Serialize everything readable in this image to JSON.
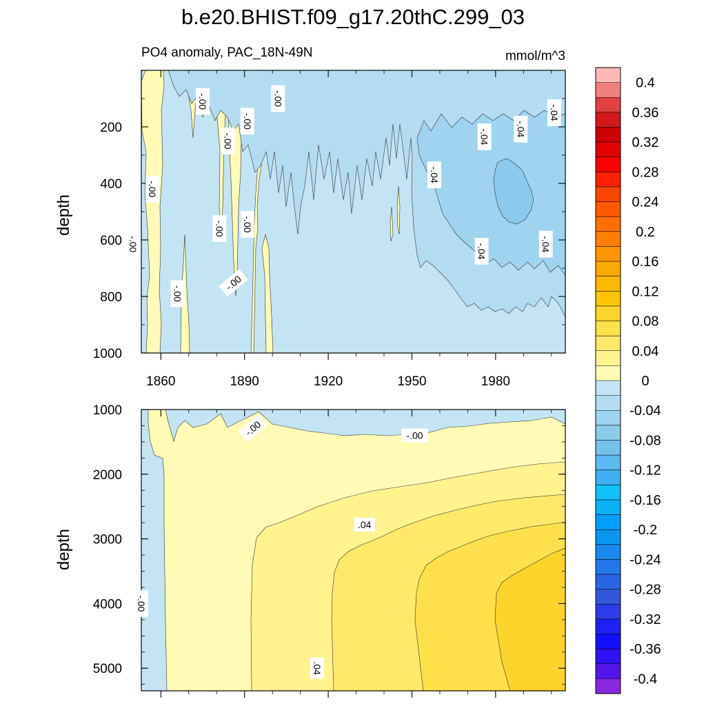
{
  "chart_data": {
    "type": "heatmap",
    "title": "b.e20.BHIST.f09_g17.20thC.299_03",
    "subtitle": "PO4 anomaly, PAC_18N-49N",
    "units": "mmol/m^3",
    "xlabel": "",
    "x_ticks": [
      1860,
      1890,
      1920,
      1950,
      1980
    ],
    "x_range": [
      1853,
      2005
    ],
    "panels": [
      {
        "name": "upper",
        "ylabel": "depth",
        "y_range": [
          0,
          1000
        ],
        "y_ticks": [
          200,
          400,
          600,
          800,
          1000
        ],
        "contour_labels": [
          {
            "text": "-.00",
            "x": 1875,
            "y": 110,
            "angle": 90
          },
          {
            "text": "-.00",
            "x": 1902,
            "y": 100,
            "angle": 90
          },
          {
            "text": "-.00",
            "x": 1891,
            "y": 180,
            "angle": 90
          },
          {
            "text": "-.00",
            "x": 1884,
            "y": 250,
            "angle": 90
          },
          {
            "text": "-.00",
            "x": 1857,
            "y": 420,
            "angle": 90
          },
          {
            "text": "-.00",
            "x": 1881,
            "y": 560,
            "angle": 90
          },
          {
            "text": "-.00",
            "x": 1891,
            "y": 545,
            "angle": 90
          },
          {
            "text": "-.00",
            "x": 1850,
            "y": 615,
            "angle": 90
          },
          {
            "text": "-.00",
            "x": 1866,
            "y": 790,
            "angle": 90
          },
          {
            "text": "-.00",
            "x": 1886,
            "y": 752,
            "angle": -40
          },
          {
            "text": "-.04",
            "x": 1976,
            "y": 235,
            "angle": 90
          },
          {
            "text": "-.04",
            "x": 1989,
            "y": 208,
            "angle": 90
          },
          {
            "text": "-.04",
            "x": 2001,
            "y": 150,
            "angle": 90
          },
          {
            "text": "-.04",
            "x": 1958,
            "y": 370,
            "angle": 90
          },
          {
            "text": "-.04",
            "x": 1975,
            "y": 640,
            "angle": 90
          },
          {
            "text": "-.04",
            "x": 1998,
            "y": 615,
            "angle": 90
          }
        ]
      },
      {
        "name": "lower",
        "ylabel": "depth",
        "y_range": [
          1000,
          5350
        ],
        "y_ticks": [
          1000,
          2000,
          3000,
          4000,
          5000
        ],
        "contour_labels": [
          {
            "text": "-.00",
            "x": 1893,
            "y": 1290,
            "angle": -40
          },
          {
            "text": "-.00",
            "x": 1951,
            "y": 1400,
            "angle": 0
          },
          {
            "text": ".04",
            "x": 1933,
            "y": 2780,
            "angle": 0
          },
          {
            "text": "-.00",
            "x": 1853,
            "y": 4000,
            "angle": 90
          },
          {
            "text": ".04",
            "x": 1916,
            "y": 5000,
            "angle": 90
          }
        ]
      }
    ],
    "colorbar": {
      "labels": [
        "0.4",
        "0.36",
        "0.32",
        "0.28",
        "0.24",
        "0.2",
        "0.16",
        "0.12",
        "0.08",
        "0.04",
        "0",
        "-0.04",
        "-0.08",
        "-0.12",
        "-0.16",
        "-0.2",
        "-0.24",
        "-0.28",
        "-0.32",
        "-0.36",
        "-0.4"
      ],
      "colors": [
        "#ffb8b8",
        "#f08080",
        "#e04040",
        "#d01818",
        "#cc0000",
        "#e40000",
        "#ff0000",
        "#ff2000",
        "#ff4400",
        "#ff5a00",
        "#ff6e00",
        "#ff8000",
        "#ff9400",
        "#ffa800",
        "#ffb800",
        "#ffc400",
        "#ffd42a",
        "#ffe04a",
        "#ffe86a",
        "#fff38e",
        "#fffab4",
        "#c4e4f4",
        "#b4dcf0",
        "#9ed4ee",
        "#8acbec",
        "#72c2ec",
        "#5ab9ee",
        "#3cb0f2",
        "#10c0fa",
        "#08b0f6",
        "#00a0f8",
        "#0896f0",
        "#1888ec",
        "#2077ea",
        "#2866e4",
        "#3058d8",
        "#2c3ce6",
        "#2020f4",
        "#1010ff",
        "#3010f4",
        "#5016e8",
        "#8828e0"
      ]
    },
    "fill_colors": {
      "neg1": "#c4e4f4",
      "neg2": "#b4dcf0",
      "neg3": "#9ed4ee",
      "neg4": "#8acbec",
      "pos1": "#fffab4",
      "pos2": "#fff38e",
      "pos3": "#ffe86a",
      "pos4": "#ffe04a",
      "pos5": "#ffd42a"
    }
  }
}
